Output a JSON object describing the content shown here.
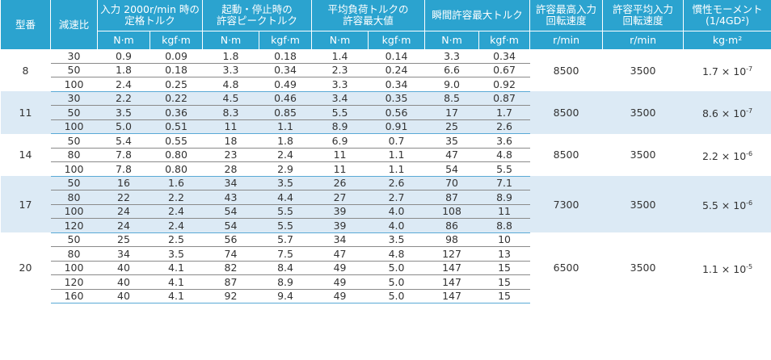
{
  "table": {
    "header": [
      [
        "型番"
      ],
      [
        "減速比"
      ],
      [
        "入力 2000r/min 時の",
        "定格トルク"
      ],
      [
        "起動・停止時の",
        "許容ピークトルク"
      ],
      [
        "平均負荷トルクの",
        "許容最大値"
      ],
      [
        "瞬間許容最大トルク"
      ],
      [
        "許容最高入力",
        "回転速度"
      ],
      [
        "許容平均入力",
        "回転速度"
      ],
      [
        "慣性モーメント",
        "(1/4GD²)"
      ]
    ],
    "units": [
      "N·m",
      "kgf·m",
      "N·m",
      "kgf·m",
      "N·m",
      "kgf·m",
      "N·m",
      "kgf·m",
      "r/min",
      "r/min",
      "kg·m²"
    ],
    "groups": [
      {
        "model": "8",
        "rows": [
          [
            "30",
            "0.9",
            "0.09",
            "1.8",
            "0.18",
            "1.4",
            "0.14",
            "3.3",
            "0.34"
          ],
          [
            "50",
            "1.8",
            "0.18",
            "3.3",
            "0.34",
            "2.3",
            "0.24",
            "6.6",
            "0.67"
          ],
          [
            "100",
            "2.4",
            "0.25",
            "4.8",
            "0.49",
            "3.3",
            "0.34",
            "9.0",
            "0.92"
          ]
        ],
        "max_speed": "8500",
        "avg_speed": "3500",
        "inertia": {
          "base": "1.7 × 10",
          "exp": "-7"
        }
      },
      {
        "model": "11",
        "rows": [
          [
            "30",
            "2.2",
            "0.22",
            "4.5",
            "0.46",
            "3.4",
            "0.35",
            "8.5",
            "0.87"
          ],
          [
            "50",
            "3.5",
            "0.36",
            "8.3",
            "0.85",
            "5.5",
            "0.56",
            "17",
            "1.7"
          ],
          [
            "100",
            "5.0",
            "0.51",
            "11",
            "1.1",
            "8.9",
            "0.91",
            "25",
            "2.6"
          ]
        ],
        "max_speed": "8500",
        "avg_speed": "3500",
        "inertia": {
          "base": "8.6 × 10",
          "exp": "-7"
        }
      },
      {
        "model": "14",
        "rows": [
          [
            "50",
            "5.4",
            "0.55",
            "18",
            "1.8",
            "6.9",
            "0.7",
            "35",
            "3.6"
          ],
          [
            "80",
            "7.8",
            "0.80",
            "23",
            "2.4",
            "11",
            "1.1",
            "47",
            "4.8"
          ],
          [
            "100",
            "7.8",
            "0.80",
            "28",
            "2.9",
            "11",
            "1.1",
            "54",
            "5.5"
          ]
        ],
        "max_speed": "8500",
        "avg_speed": "3500",
        "inertia": {
          "base": "2.2 × 10",
          "exp": "-6"
        }
      },
      {
        "model": "17",
        "rows": [
          [
            "50",
            "16",
            "1.6",
            "34",
            "3.5",
            "26",
            "2.6",
            "70",
            "7.1"
          ],
          [
            "80",
            "22",
            "2.2",
            "43",
            "4.4",
            "27",
            "2.7",
            "87",
            "8.9"
          ],
          [
            "100",
            "24",
            "2.4",
            "54",
            "5.5",
            "39",
            "4.0",
            "108",
            "11"
          ],
          [
            "120",
            "24",
            "2.4",
            "54",
            "5.5",
            "39",
            "4.0",
            "86",
            "8.8"
          ]
        ],
        "max_speed": "7300",
        "avg_speed": "3500",
        "inertia": {
          "base": "5.5 × 10",
          "exp": "-6"
        }
      },
      {
        "model": "20",
        "rows": [
          [
            "50",
            "25",
            "2.5",
            "56",
            "5.7",
            "34",
            "3.5",
            "98",
            "10"
          ],
          [
            "80",
            "34",
            "3.5",
            "74",
            "7.5",
            "47",
            "4.8",
            "127",
            "13"
          ],
          [
            "100",
            "40",
            "4.1",
            "82",
            "8.4",
            "49",
            "5.0",
            "147",
            "15"
          ],
          [
            "120",
            "40",
            "4.1",
            "87",
            "8.9",
            "49",
            "5.0",
            "147",
            "15"
          ],
          [
            "160",
            "40",
            "4.1",
            "92",
            "9.4",
            "49",
            "5.0",
            "147",
            "15"
          ]
        ],
        "max_speed": "6500",
        "avg_speed": "3500",
        "inertia": {
          "base": "1.1 × 10",
          "exp": "-5"
        }
      }
    ]
  }
}
